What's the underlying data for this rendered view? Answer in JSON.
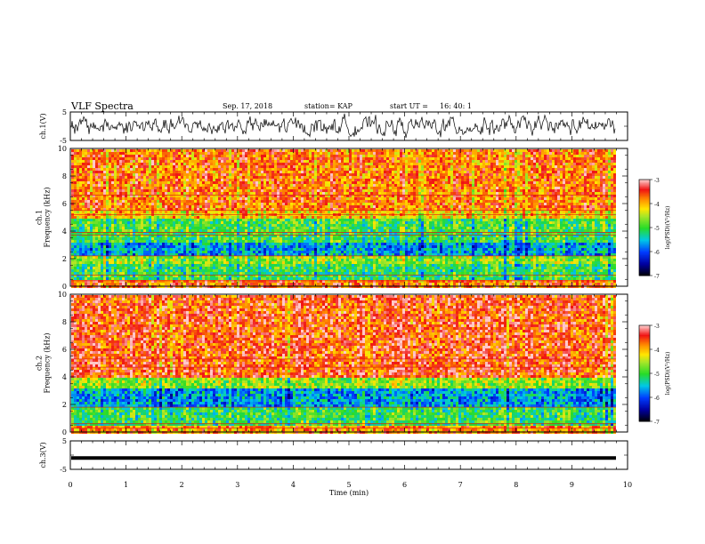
{
  "header": {
    "title": "VLF Spectra",
    "date": "Sep. 17, 2018",
    "station": "station= KAP",
    "start": "start UT =",
    "start_time": "16: 40: 1"
  },
  "chart_data": [
    {
      "type": "line",
      "ylabel": "ch.1(V)",
      "ylim": [
        -5,
        5
      ],
      "yticks": [
        "5",
        "-5"
      ],
      "xlim": [
        0,
        10
      ],
      "note": "dense noisy waveform centered near 0 V, amplitude roughly 1-3 V"
    },
    {
      "type": "heatmap",
      "ylabel": "ch.1\nFrequency (kHz)",
      "ylim": [
        0,
        10
      ],
      "yticks": [
        "0",
        "2",
        "4",
        "6",
        "8",
        "10"
      ],
      "xlim": [
        0,
        10
      ],
      "colorbar": {
        "label": "log(PSD)(V²/Hz)",
        "range": [
          -7,
          -3
        ],
        "ticks": [
          "-3",
          "-4",
          "-5",
          "-6",
          "-7"
        ]
      },
      "bands": [
        {
          "fmin": 0.0,
          "fmax": 0.6,
          "level": -3.6
        },
        {
          "fmin": 0.6,
          "fmax": 1.8,
          "level": -5.0
        },
        {
          "fmin": 1.8,
          "fmax": 2.3,
          "level": -4.6
        },
        {
          "fmin": 2.3,
          "fmax": 3.3,
          "level": -5.6
        },
        {
          "fmin": 3.3,
          "fmax": 4.0,
          "level": -5.0
        },
        {
          "fmin": 4.0,
          "fmax": 5.0,
          "level": -4.9
        },
        {
          "fmin": 5.0,
          "fmax": 5.6,
          "level": -4.1
        },
        {
          "fmin": 5.6,
          "fmax": 10.0,
          "level": -3.7
        }
      ]
    },
    {
      "type": "heatmap",
      "ylabel": "ch.2\nFrequency (kHz)",
      "ylim": [
        0,
        10
      ],
      "yticks": [
        "0",
        "2",
        "4",
        "6",
        "8",
        "10"
      ],
      "xlim": [
        0,
        10
      ],
      "colorbar": {
        "label": "log(PSD)(V²/Hz)",
        "range": [
          -7,
          -3
        ],
        "ticks": [
          "-3",
          "-4",
          "-5",
          "-6",
          "-7"
        ]
      },
      "bands": [
        {
          "fmin": 0.0,
          "fmax": 0.5,
          "level": -3.8
        },
        {
          "fmin": 0.5,
          "fmax": 1.9,
          "level": -5.0
        },
        {
          "fmin": 1.9,
          "fmax": 3.2,
          "level": -5.6
        },
        {
          "fmin": 3.2,
          "fmax": 4.0,
          "level": -4.6
        },
        {
          "fmin": 4.0,
          "fmax": 10.0,
          "level": -3.5
        }
      ]
    },
    {
      "type": "line",
      "ylabel": "ch.3(V)",
      "ylim": [
        -5,
        5
      ],
      "yticks": [
        "5",
        "-5"
      ],
      "xlim": [
        0,
        10
      ],
      "xticks": [
        "0",
        "1",
        "2",
        "3",
        "4",
        "5",
        "6",
        "7",
        "8",
        "9",
        "10"
      ],
      "xlabel": "Time (min)",
      "values_constant": -1.0,
      "note": "flat trace at about -1 V"
    }
  ]
}
